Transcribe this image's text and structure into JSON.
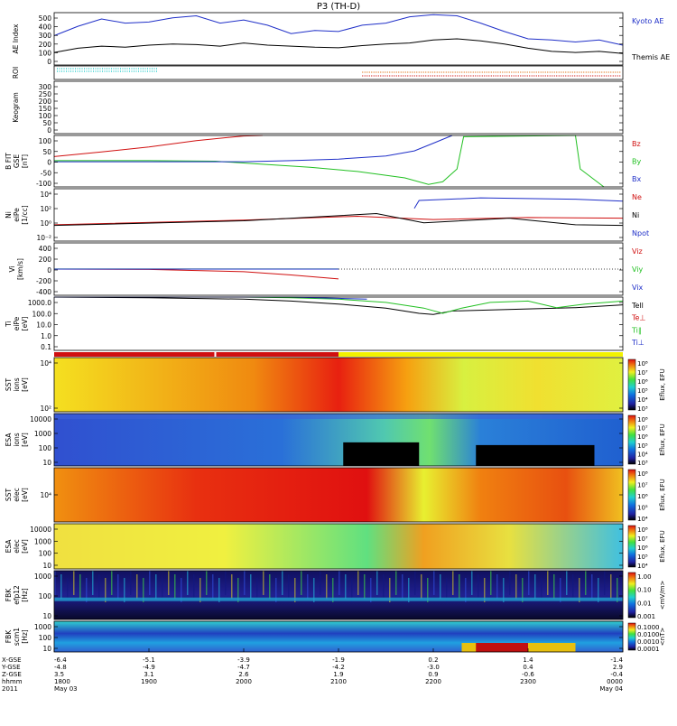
{
  "title": "P3 (TH-D)",
  "colors": {
    "blue": "#1f2fc8",
    "black": "#000000",
    "red": "#d01010",
    "green": "#22c022",
    "cyan": "#18c8c8",
    "orange": "#e07010",
    "roi_yellow": "#f2f200"
  },
  "panels": [
    {
      "id": "ae",
      "ylabel": [
        "AE Index"
      ],
      "ticks": [
        "500",
        "400",
        "300",
        "200",
        "100",
        "0"
      ],
      "legend": [
        {
          "text": "Kyoto AE",
          "color": "#1f2fc8"
        },
        {
          "text": "Themis AE",
          "color": "#000000"
        }
      ]
    },
    {
      "id": "roi",
      "ylabel": [
        "ROI"
      ],
      "ticks": [],
      "legend": []
    },
    {
      "id": "keogram",
      "ylabel": [
        "Keogram"
      ],
      "ticks": [
        "300",
        "250",
        "200",
        "150",
        "100",
        "50",
        "0"
      ],
      "legend": []
    },
    {
      "id": "bfield",
      "ylabel": [
        "B FIT",
        "GSE",
        "[nT]"
      ],
      "ticks": [
        "100",
        "50",
        "0",
        "-50",
        "-100"
      ],
      "legend": [
        {
          "text": "Bz",
          "color": "#d01010"
        },
        {
          "text": "By",
          "color": "#22c022"
        },
        {
          "text": "Bx",
          "color": "#1f2fc8"
        }
      ]
    },
    {
      "id": "density",
      "ylabel": [
        "Ni",
        "eiPe",
        "[1/cc]"
      ],
      "ticks": [
        "10⁴",
        "10²",
        "10⁰",
        "10⁻²"
      ],
      "legend": [
        {
          "text": "Ne",
          "color": "#d01010"
        },
        {
          "text": "Ni",
          "color": "#000000"
        },
        {
          "text": "Npot",
          "color": "#1f2fc8"
        }
      ]
    },
    {
      "id": "velocity",
      "ylabel": [
        "Vi",
        "[km/s]"
      ],
      "ticks": [
        "400",
        "200",
        "0",
        "-200",
        "-400"
      ],
      "legend": [
        {
          "text": "Viz",
          "color": "#d01010"
        },
        {
          "text": "Viy",
          "color": "#22c022"
        },
        {
          "text": "Vix",
          "color": "#1f2fc8"
        }
      ]
    },
    {
      "id": "temperature",
      "ylabel": [
        "Ti",
        "eiPe",
        "[eV]"
      ],
      "ticks": [
        "1000.0",
        "100.0",
        "10.0",
        "1.0",
        "0.1"
      ],
      "legend": [
        {
          "text": "Tell",
          "color": "#000000"
        },
        {
          "text": "Te⊥",
          "color": "#d01010"
        },
        {
          "text": "Ti∥",
          "color": "#22c022"
        },
        {
          "text": "Ti⊥",
          "color": "#1f2fc8"
        }
      ]
    },
    {
      "id": "sst_i",
      "ylabel": [
        "SST",
        "ions",
        "[eV]"
      ],
      "ticks": [
        "10⁴",
        "10²"
      ],
      "legend": []
    },
    {
      "id": "esa_i",
      "ylabel": [
        "ESA",
        "ions",
        "[eV]"
      ],
      "ticks": [
        "10000",
        "1000",
        "100",
        "10"
      ],
      "legend": []
    },
    {
      "id": "sst_e",
      "ylabel": [
        "SST",
        "elec",
        "[eV]"
      ],
      "ticks": [
        "10⁴"
      ],
      "legend": []
    },
    {
      "id": "esa_e",
      "ylabel": [
        "ESA",
        "elec",
        "[eV]"
      ],
      "ticks": [
        "10000",
        "1000",
        "100",
        "10"
      ],
      "legend": []
    },
    {
      "id": "fbk1",
      "ylabel": [
        "FBK",
        "efp12",
        "[Hz]"
      ],
      "ticks": [
        "1000",
        "100",
        "10"
      ],
      "legend": []
    },
    {
      "id": "fbk2",
      "ylabel": [
        "FBK",
        "scm1",
        "[Hz]"
      ],
      "ticks": [
        "1000",
        "100",
        "10"
      ],
      "legend": []
    }
  ],
  "colorbars": [
    {
      "label": "Eflux, EFU",
      "ticks": [
        "10⁸",
        "10⁷",
        "10⁶",
        "10⁵",
        "10⁴",
        "10³"
      ]
    },
    {
      "label": "Eflux, EFU",
      "ticks": [
        "10⁸",
        "10⁷",
        "10⁶",
        "10⁵",
        "10⁴",
        "10³"
      ]
    },
    {
      "label": "Eflux, EFU",
      "ticks": [
        "10⁸",
        "10⁷",
        "10⁶",
        "10⁵",
        "10⁴"
      ]
    },
    {
      "label": "Eflux, EFU",
      "ticks": [
        "10⁸",
        "10⁷",
        "10⁶",
        "10⁵",
        "10⁴"
      ]
    },
    {
      "label": "<mV/m>",
      "ticks": [
        "1.00",
        "0.10",
        "0.01",
        "0.001"
      ]
    },
    {
      "label": "<nT>",
      "ticks": [
        "0.1000",
        "0.0100",
        "0.0010",
        "0.0001"
      ]
    }
  ],
  "x_axis": {
    "row_labels": [
      "X-GSE",
      "Y-GSE",
      "Z-GSE",
      "hhmm",
      "2011"
    ],
    "columns": [
      {
        "x": "-6.4",
        "y": "-4.8",
        "z": "3.5",
        "t": "1800",
        "d": "May 03"
      },
      {
        "x": "-5.1",
        "y": "-4.9",
        "z": "3.1",
        "t": "1900",
        "d": ""
      },
      {
        "x": "-3.9",
        "y": "-4.7",
        "z": "2.6",
        "t": "2000",
        "d": ""
      },
      {
        "x": "-1.9",
        "y": "-4.2",
        "z": "1.9",
        "t": "2100",
        "d": ""
      },
      {
        "x": "0.2",
        "y": "-3.0",
        "z": "0.9",
        "t": "2200",
        "d": ""
      },
      {
        "x": "1.4",
        "y": "0.4",
        "z": "-0.6",
        "t": "2300",
        "d": ""
      },
      {
        "x": "-1.4",
        "y": "2.9",
        "z": "-0.4",
        "t": "0000",
        "d": "May 04"
      }
    ]
  },
  "chart_data": {
    "type": "line",
    "title": "P3 (TH-D)",
    "x_range_hhmm": [
      "1800",
      "0000"
    ],
    "ae_index": {
      "ylim": [
        0,
        500
      ],
      "series": [
        {
          "name": "Kyoto AE",
          "x": [
            18.0,
            18.25,
            18.5,
            18.75,
            19.0,
            19.25,
            19.5,
            19.75,
            20.0,
            20.25,
            20.5,
            20.75,
            21.0,
            21.25,
            21.5,
            21.75,
            22.0,
            22.25,
            22.5,
            22.75,
            23.0,
            23.25,
            23.5,
            23.75,
            24.0
          ],
          "values": [
            280,
            370,
            440,
            400,
            410,
            450,
            470,
            400,
            430,
            380,
            300,
            330,
            320,
            380,
            400,
            460,
            480,
            470,
            400,
            320,
            250,
            240,
            220,
            240,
            190
          ]
        },
        {
          "name": "Themis AE",
          "x": [
            18.0,
            18.25,
            18.5,
            18.75,
            19.0,
            19.25,
            19.5,
            19.75,
            20.0,
            20.25,
            20.5,
            20.75,
            21.0,
            21.25,
            21.5,
            21.75,
            22.0,
            22.25,
            22.5,
            22.75,
            23.0,
            23.25,
            23.5,
            23.75,
            24.0
          ],
          "values": [
            120,
            160,
            180,
            170,
            190,
            200,
            195,
            180,
            210,
            190,
            180,
            170,
            165,
            185,
            200,
            210,
            240,
            250,
            230,
            200,
            160,
            130,
            120,
            130,
            110
          ]
        }
      ]
    },
    "b_field": {
      "ylim": [
        -100,
        100
      ],
      "series": [
        {
          "name": "Bz",
          "x": [
            18.0,
            18.5,
            19.0,
            19.5,
            20.0,
            20.2
          ],
          "values": [
            18,
            36,
            55,
            80,
            98,
            100
          ]
        },
        {
          "name": "By",
          "x": [
            18.0,
            19.0,
            19.7,
            20.2,
            20.7,
            21.2,
            21.7,
            21.95,
            22.1,
            22.25,
            22.32,
            23.5,
            23.55,
            23.8
          ],
          "values": [
            2,
            2,
            0,
            -12,
            -24,
            -40,
            -65,
            -90,
            -80,
            -30,
            95,
            100,
            -30,
            -100
          ]
        },
        {
          "name": "Bx",
          "x": [
            18.0,
            19.0,
            20.0,
            20.5,
            21.0,
            21.5,
            21.8,
            22.0,
            22.2
          ],
          "values": [
            -2,
            -2,
            -2,
            2,
            8,
            20,
            40,
            70,
            100
          ]
        }
      ]
    },
    "velocity": {
      "ylim": [
        -400,
        400
      ],
      "series": [
        {
          "name": "Viz",
          "x": [
            18.0,
            19.0,
            20.0,
            20.5,
            21.0
          ],
          "values": [
            0,
            -5,
            -40,
            -90,
            -150
          ]
        },
        {
          "name": "Viy",
          "x": [
            18.0,
            21.0
          ],
          "values": [
            2,
            2
          ]
        },
        {
          "name": "Vix",
          "x": [
            18.0,
            21.0
          ],
          "values": [
            0,
            0
          ]
        }
      ]
    },
    "temperature": {
      "ylim": [
        0.1,
        1000
      ],
      "scale": "log",
      "series": [
        {
          "name": "Tell",
          "x": [
            18.0,
            19.0,
            20.0,
            20.5,
            21.0,
            21.5,
            21.85,
            22.0,
            22.2,
            23.0,
            23.5,
            24.0
          ],
          "values": [
            1000,
            900,
            700,
            500,
            300,
            150,
            60,
            50,
            90,
            130,
            160,
            260
          ]
        },
        {
          "name": "Ti∥",
          "x": [
            18.0,
            19.0,
            20.0,
            20.5,
            21.0,
            21.5,
            21.9,
            22.1,
            22.3,
            22.6,
            23.0,
            23.3,
            23.6,
            24.0
          ],
          "values": [
            1200,
            1200,
            1100,
            900,
            700,
            400,
            150,
            60,
            150,
            400,
            500,
            160,
            300,
            500
          ]
        },
        {
          "name": "Ti⊥",
          "x": [
            18.0,
            19.0,
            20.0,
            20.5,
            21.0,
            21.3
          ],
          "values": [
            1300,
            1300,
            1200,
            1000,
            800,
            700
          ]
        }
      ]
    }
  }
}
